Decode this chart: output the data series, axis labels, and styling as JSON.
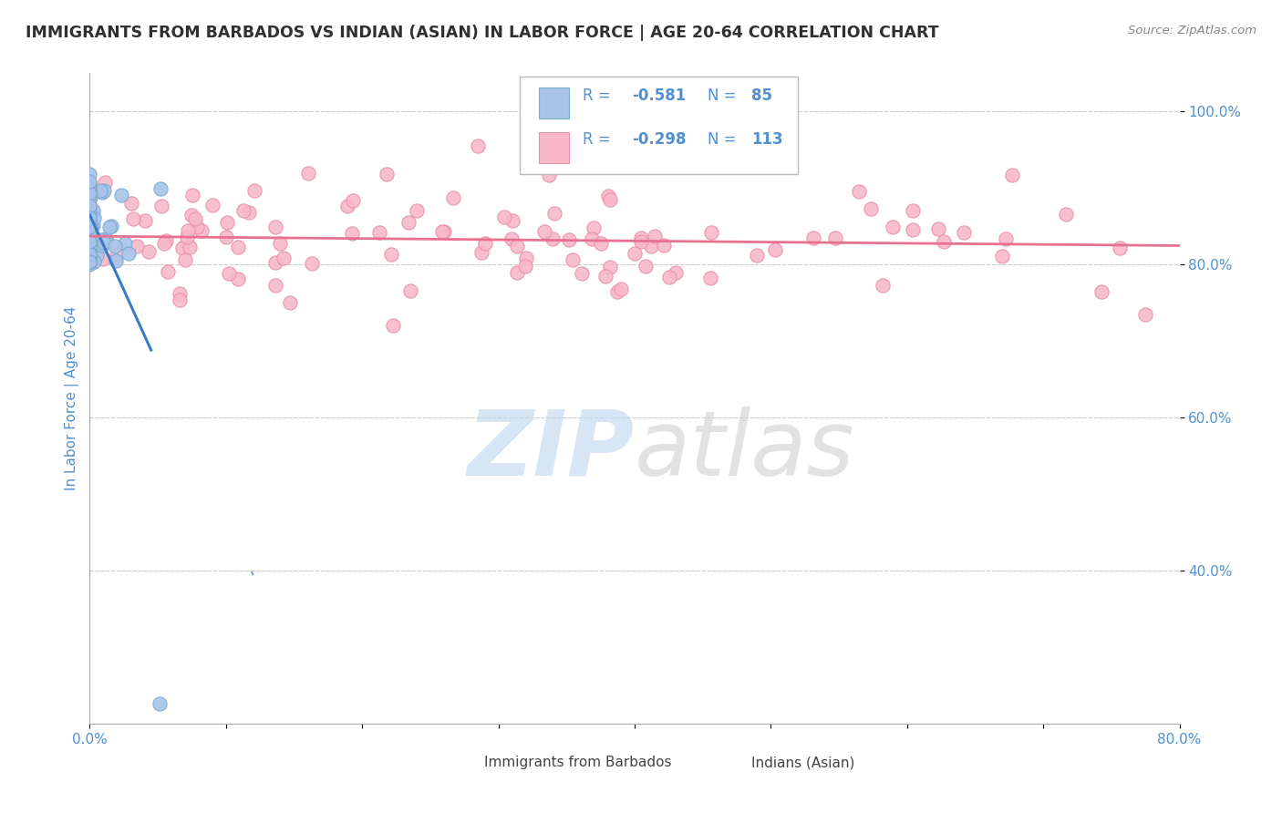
{
  "title": "IMMIGRANTS FROM BARBADOS VS INDIAN (ASIAN) IN LABOR FORCE | AGE 20-64 CORRELATION CHART",
  "source_text": "Source: ZipAtlas.com",
  "ylabel": "In Labor Force | Age 20-64",
  "xlim": [
    0.0,
    0.8
  ],
  "ylim": [
    0.2,
    1.05
  ],
  "yticks": [
    0.4,
    0.6,
    0.8,
    1.0
  ],
  "yticklabels": [
    "40.0%",
    "60.0%",
    "80.0%",
    "100.0%"
  ],
  "R_barbados": -0.581,
  "N_barbados": 85,
  "R_indian": -0.298,
  "N_indian": 113,
  "barbados_color": "#a8c4e8",
  "barbados_edge": "#7aaad0",
  "barbados_line_color": "#3a7bc8",
  "indian_color": "#f8b8ca",
  "indian_edge": "#e890a8",
  "indian_line_color": "#e87090",
  "watermark_zip_color": "#bdd5ee",
  "watermark_atlas_color": "#d0d0d0",
  "background_color": "#ffffff",
  "grid_color": "#cccccc",
  "title_color": "#303030",
  "axis_label_color": "#5090d0",
  "tick_color": "#5090d0",
  "legend_text_color": "#5090d0",
  "source_color": "#888888"
}
